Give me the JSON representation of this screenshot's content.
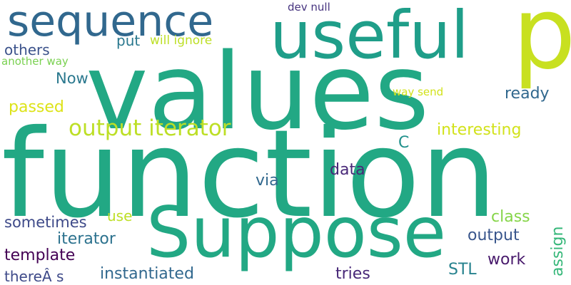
{
  "words": [
    {
      "text": "function",
      "color": "#22a884"
    },
    {
      "text": "values",
      "color": "#22a884"
    },
    {
      "text": "Suppose",
      "color": "#22a884"
    },
    {
      "text": "useful",
      "color": "#1f9e89"
    },
    {
      "text": "sequence",
      "color": "#31688e"
    },
    {
      "text": "p",
      "color": "#c8e020"
    },
    {
      "text": "output iterator",
      "color": "#bddf26"
    },
    {
      "text": "interesting",
      "color": "#d2e21b"
    },
    {
      "text": "passed",
      "color": "#dde318"
    },
    {
      "text": "Now",
      "color": "#2a788e"
    },
    {
      "text": "ready",
      "color": "#31688e"
    },
    {
      "text": "others",
      "color": "#3b528b"
    },
    {
      "text": "put",
      "color": "#2a788e"
    },
    {
      "text": "will ignore",
      "color": "#bddf26"
    },
    {
      "text": "dev null",
      "color": "#46337f"
    },
    {
      "text": "another way",
      "color": "#7ad151"
    },
    {
      "text": "way send",
      "color": "#d2e21b"
    },
    {
      "text": "C",
      "color": "#21918c"
    },
    {
      "text": "data",
      "color": "#482878"
    },
    {
      "text": "via",
      "color": "#31688e"
    },
    {
      "text": "class",
      "color": "#86d549"
    },
    {
      "text": "assign",
      "color": "#35b779"
    },
    {
      "text": "sometimes",
      "color": "#3e4a89"
    },
    {
      "text": "use",
      "color": "#bddf26"
    },
    {
      "text": "iterator",
      "color": "#2c728e"
    },
    {
      "text": "output",
      "color": "#39568c"
    },
    {
      "text": "template",
      "color": "#440154"
    },
    {
      "text": "work",
      "color": "#481a6c"
    },
    {
      "text": "thereÂ s",
      "color": "#3e4a89"
    },
    {
      "text": "instantiated",
      "color": "#31688e"
    },
    {
      "text": "tries",
      "color": "#482878"
    },
    {
      "text": "STL",
      "color": "#26828e"
    }
  ]
}
